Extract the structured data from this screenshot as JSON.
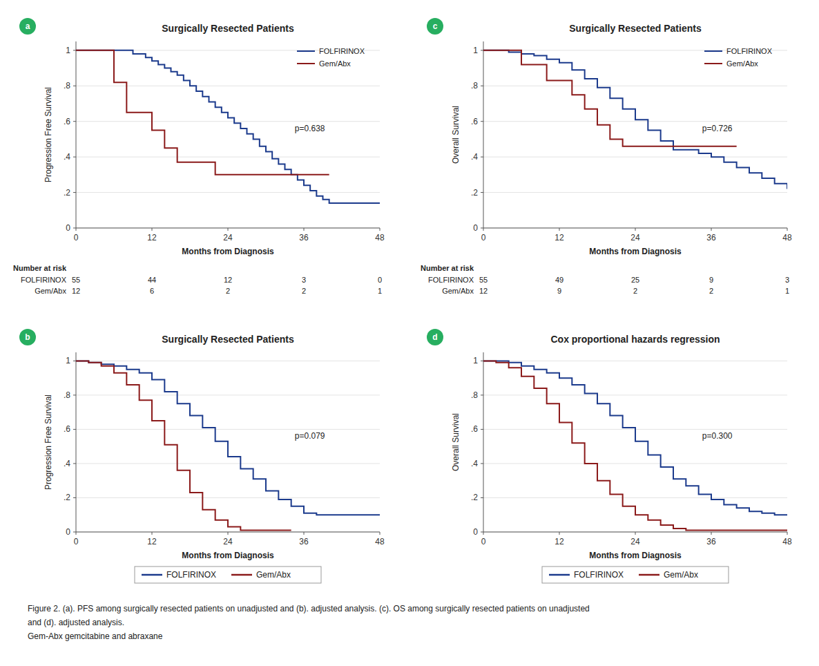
{
  "chart_data": [
    {
      "type": "step",
      "panel_label": "a",
      "title": "Surgically Resected Patients",
      "xlabel": "Months from Diagnosis",
      "ylabel": "Progression Free Survival",
      "annotation": "p=0.638",
      "xlim": [
        0,
        48
      ],
      "ylim": [
        0,
        1.05
      ],
      "xticks": [
        0,
        12,
        24,
        36,
        48
      ],
      "yticks": [
        0,
        {
          "value": 0.2,
          "label": ".2"
        },
        {
          "value": 0.4,
          "label": ".4"
        },
        {
          "value": 0.6,
          "label": ".6"
        },
        {
          "value": 0.8,
          "label": ".8"
        },
        1
      ],
      "grid": "y",
      "legend": "upper right",
      "series": [
        {
          "name": "FOLFIRINOX",
          "color": "#1B3A8C",
          "x": [
            0,
            2,
            4,
            6,
            8,
            9,
            10,
            11,
            12,
            13,
            14,
            15,
            16,
            17,
            18,
            19,
            20,
            21,
            22,
            23,
            24,
            25,
            26,
            27,
            28,
            29,
            30,
            31,
            32,
            33,
            34,
            35,
            36,
            37,
            38,
            39,
            40,
            41,
            42,
            43,
            44,
            45,
            46,
            47,
            48
          ],
          "values": [
            1.0,
            1.0,
            1.0,
            1.0,
            1.0,
            0.98,
            0.98,
            0.96,
            0.94,
            0.92,
            0.9,
            0.88,
            0.86,
            0.83,
            0.8,
            0.77,
            0.74,
            0.71,
            0.68,
            0.65,
            0.62,
            0.59,
            0.56,
            0.53,
            0.5,
            0.46,
            0.43,
            0.39,
            0.36,
            0.33,
            0.3,
            0.27,
            0.24,
            0.21,
            0.18,
            0.16,
            0.14,
            0.14,
            0.14,
            0.14,
            0.14,
            0.14,
            0.14,
            0.14,
            0.14
          ]
        },
        {
          "name": "Gem/Abx",
          "color": "#8B1A1A",
          "x": [
            0,
            2,
            4,
            6,
            8,
            10,
            12,
            14,
            16,
            18,
            20,
            22,
            24,
            26,
            28,
            30,
            32,
            34,
            36,
            38,
            40
          ],
          "values": [
            1.0,
            1.0,
            1.0,
            0.82,
            0.65,
            0.65,
            0.55,
            0.45,
            0.37,
            0.37,
            0.37,
            0.3,
            0.3,
            0.3,
            0.3,
            0.3,
            0.3,
            0.3,
            0.3,
            0.3,
            0.3
          ]
        }
      ],
      "risk_table": {
        "title": "Number at risk",
        "rows": [
          {
            "name": "FOLFIRINOX",
            "values": [
              55,
              44,
              12,
              3,
              0
            ]
          },
          {
            "name": "Gem/Abx",
            "values": [
              12,
              6,
              2,
              2,
              1
            ]
          }
        ]
      }
    },
    {
      "type": "step",
      "panel_label": "c",
      "title": "Surgically Resected Patients",
      "xlabel": "Months from Diagnosis",
      "ylabel": "Overall Survival",
      "annotation": "p=0.726",
      "xlim": [
        0,
        48
      ],
      "ylim": [
        0,
        1.05
      ],
      "xticks": [
        0,
        12,
        24,
        36,
        48
      ],
      "yticks": [
        0,
        {
          "value": 0.2,
          "label": ".2"
        },
        {
          "value": 0.4,
          "label": ".4"
        },
        {
          "value": 0.6,
          "label": ".6"
        },
        {
          "value": 0.8,
          "label": ".8"
        },
        1
      ],
      "grid": "y",
      "legend": "upper right",
      "series": [
        {
          "name": "FOLFIRINOX",
          "color": "#1B3A8C",
          "x": [
            0,
            2,
            4,
            6,
            8,
            10,
            12,
            14,
            16,
            18,
            20,
            22,
            24,
            26,
            28,
            30,
            32,
            34,
            36,
            38,
            40,
            42,
            44,
            46,
            48
          ],
          "values": [
            1.0,
            1.0,
            0.99,
            0.98,
            0.97,
            0.95,
            0.93,
            0.89,
            0.84,
            0.79,
            0.73,
            0.67,
            0.61,
            0.55,
            0.49,
            0.44,
            0.44,
            0.42,
            0.4,
            0.37,
            0.34,
            0.31,
            0.28,
            0.25,
            0.22
          ]
        },
        {
          "name": "Gem/Abx",
          "color": "#8B1A1A",
          "x": [
            0,
            2,
            4,
            6,
            8,
            10,
            12,
            14,
            16,
            18,
            20,
            22,
            24,
            26,
            28,
            30,
            32,
            34,
            36,
            38,
            40
          ],
          "values": [
            1.0,
            1.0,
            1.0,
            0.92,
            0.92,
            0.83,
            0.83,
            0.75,
            0.67,
            0.58,
            0.5,
            0.46,
            0.46,
            0.46,
            0.46,
            0.46,
            0.46,
            0.46,
            0.46,
            0.46,
            0.46
          ]
        }
      ],
      "risk_table": {
        "title": "Number at risk",
        "rows": [
          {
            "name": "FOLFIRINOX",
            "values": [
              55,
              49,
              25,
              9,
              3
            ]
          },
          {
            "name": "Gem/Abx",
            "values": [
              12,
              9,
              2,
              2,
              1
            ]
          }
        ]
      }
    },
    {
      "type": "step",
      "panel_label": "b",
      "title": "Surgically Resected Patients",
      "xlabel": "Months from Diagnosis",
      "ylabel": "Progression Free Survival",
      "annotation": "p=0.079",
      "xlim": [
        0,
        48
      ],
      "ylim": [
        0,
        1.05
      ],
      "xticks": [
        0,
        12,
        24,
        36,
        48
      ],
      "yticks": [
        0,
        {
          "value": 0.2,
          "label": ".2"
        },
        {
          "value": 0.4,
          "label": ".4"
        },
        {
          "value": 0.6,
          "label": ".6"
        },
        {
          "value": 0.8,
          "label": ".8"
        },
        1
      ],
      "grid": "y",
      "legend": "below",
      "series": [
        {
          "name": "FOLFIRINOX",
          "color": "#1B3A8C",
          "x": [
            0,
            2,
            4,
            6,
            8,
            10,
            12,
            14,
            16,
            18,
            20,
            22,
            24,
            26,
            28,
            30,
            32,
            34,
            36,
            38,
            40,
            42,
            44,
            46,
            48
          ],
          "values": [
            1.0,
            0.99,
            0.98,
            0.97,
            0.95,
            0.93,
            0.89,
            0.82,
            0.75,
            0.68,
            0.61,
            0.53,
            0.44,
            0.37,
            0.31,
            0.24,
            0.19,
            0.15,
            0.11,
            0.1,
            0.1,
            0.1,
            0.1,
            0.1,
            0.1
          ]
        },
        {
          "name": "Gem/Abx",
          "color": "#8B1A1A",
          "x": [
            0,
            2,
            4,
            6,
            8,
            10,
            12,
            14,
            16,
            18,
            20,
            22,
            24,
            26,
            28,
            30,
            32,
            34
          ],
          "values": [
            1.0,
            0.99,
            0.97,
            0.93,
            0.86,
            0.77,
            0.65,
            0.51,
            0.36,
            0.23,
            0.13,
            0.07,
            0.03,
            0.01,
            0.01,
            0.01,
            0.01,
            0.01
          ]
        }
      ]
    },
    {
      "type": "step",
      "panel_label": "d",
      "title": "Cox proportional hazards regression",
      "xlabel": "Months from Diagnosis",
      "ylabel": "Overall Survival",
      "annotation": "p=0.300",
      "xlim": [
        0,
        48
      ],
      "ylim": [
        0,
        1.05
      ],
      "xticks": [
        0,
        12,
        24,
        36,
        48
      ],
      "yticks": [
        0,
        {
          "value": 0.2,
          "label": ".2"
        },
        {
          "value": 0.4,
          "label": ".4"
        },
        {
          "value": 0.6,
          "label": ".6"
        },
        {
          "value": 0.8,
          "label": ".8"
        },
        1
      ],
      "grid": "y",
      "legend": "below",
      "series": [
        {
          "name": "FOLFIRINOX",
          "color": "#1B3A8C",
          "x": [
            0,
            2,
            4,
            6,
            8,
            10,
            12,
            14,
            16,
            18,
            20,
            22,
            24,
            26,
            28,
            30,
            32,
            34,
            36,
            38,
            40,
            42,
            44,
            46,
            48
          ],
          "values": [
            1.0,
            1.0,
            0.99,
            0.97,
            0.95,
            0.93,
            0.9,
            0.86,
            0.81,
            0.75,
            0.68,
            0.61,
            0.53,
            0.45,
            0.38,
            0.31,
            0.27,
            0.22,
            0.19,
            0.16,
            0.14,
            0.12,
            0.11,
            0.1,
            0.1
          ]
        },
        {
          "name": "Gem/Abx",
          "color": "#8B1A1A",
          "x": [
            0,
            2,
            4,
            6,
            8,
            10,
            12,
            14,
            16,
            18,
            20,
            22,
            24,
            26,
            28,
            30,
            32,
            34,
            36,
            38,
            40,
            42,
            44,
            46,
            48
          ],
          "values": [
            1.0,
            0.99,
            0.96,
            0.91,
            0.84,
            0.75,
            0.64,
            0.52,
            0.4,
            0.3,
            0.22,
            0.15,
            0.1,
            0.07,
            0.04,
            0.02,
            0.01,
            0.01,
            0.01,
            0.01,
            0.01,
            0.01,
            0.01,
            0.01,
            0.01
          ]
        }
      ]
    }
  ],
  "caption": [
    "Figure 2. (a). PFS among surgically resected patients on unadjusted and (b). adjusted analysis. (c). OS among surgically resected patients on unadjusted",
    "and (d). adjusted analysis.",
    "Gem-Abx gemcitabine and abraxane"
  ]
}
